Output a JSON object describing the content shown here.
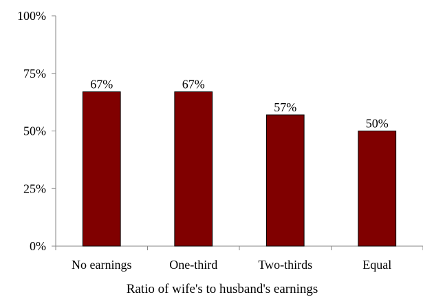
{
  "chart_data": {
    "type": "bar",
    "categories": [
      "No earnings",
      "One-third",
      "Two-thirds",
      "Equal"
    ],
    "values": [
      67,
      67,
      57,
      50
    ],
    "data_labels": [
      "67%",
      "67%",
      "57%",
      "50%"
    ],
    "xlabel": "Ratio of wife's to husband's earnings",
    "ylabel": "",
    "ylim": [
      0,
      100
    ],
    "yticks": [
      0,
      25,
      50,
      75,
      100
    ],
    "ytick_labels": [
      "0%",
      "25%",
      "50%",
      "75%",
      "100%"
    ],
    "grid": false,
    "legend": "none",
    "bar_color": "#800000"
  }
}
